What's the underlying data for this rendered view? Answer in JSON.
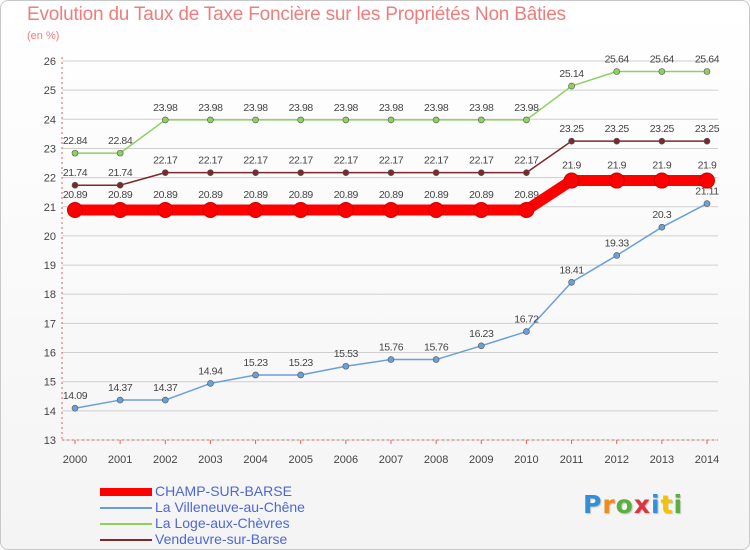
{
  "chart_data": {
    "type": "line",
    "title": "Evolution du Taux de Taxe Foncière sur les Propriétés Non Bâties",
    "subtitle": "(en %)",
    "xlabel": "",
    "ylabel": "(en %)",
    "ylim": [
      13,
      26
    ],
    "yticks": [
      13,
      14,
      15,
      16,
      17,
      18,
      19,
      20,
      21,
      22,
      23,
      24,
      25,
      26
    ],
    "grid": "horizontal",
    "categories": [
      "2000",
      "2001",
      "2002",
      "2003",
      "2004",
      "2005",
      "2006",
      "2007",
      "2008",
      "2009",
      "2010",
      "2011",
      "2012",
      "2013",
      "2014"
    ],
    "series": [
      {
        "name": "CHAMP-SUR-BARSE",
        "color": "#ff0000",
        "values": [
          20.89,
          20.89,
          20.89,
          20.89,
          20.89,
          20.89,
          20.89,
          20.89,
          20.89,
          20.89,
          20.89,
          21.9,
          21.9,
          21.9,
          21.9
        ],
        "labels": [
          "20.89",
          "20.89",
          "20.89",
          "20.89",
          "20.89",
          "20.89",
          "20.89",
          "20.89",
          "20.89",
          "20.89",
          "20.89",
          "21.9",
          "21.9",
          "21.9",
          "21.9"
        ]
      },
      {
        "name": "La Villeneuve-au-Chêne",
        "color": "#6a9fd8",
        "values": [
          14.09,
          14.37,
          14.37,
          14.94,
          15.23,
          15.23,
          15.53,
          15.76,
          15.76,
          16.23,
          16.72,
          18.41,
          19.33,
          20.3,
          21.11
        ],
        "labels": [
          "14.09",
          "14.37",
          "14.37",
          "14.94",
          "15.23",
          "15.23",
          "15.53",
          "15.76",
          "15.76",
          "16.23",
          "16.72",
          "18.41",
          "19.33",
          "20.3",
          "21.11"
        ]
      },
      {
        "name": "La Loge-aux-Chèvres",
        "color": "#8ed160",
        "values": [
          22.84,
          22.84,
          23.98,
          23.98,
          23.98,
          23.98,
          23.98,
          23.98,
          23.98,
          23.98,
          23.98,
          25.14,
          25.64,
          25.64,
          25.64
        ],
        "labels": [
          "22.84",
          "22.84",
          "23.98",
          "23.98",
          "23.98",
          "23.98",
          "23.98",
          "23.98",
          "23.98",
          "23.98",
          "23.98",
          "25.14",
          "25.64",
          "25.64",
          "25.64"
        ]
      },
      {
        "name": "Vendeuvre-sur-Barse",
        "color": "#7a2a2a",
        "values": [
          21.74,
          21.74,
          22.17,
          22.17,
          22.17,
          22.17,
          22.17,
          22.17,
          22.17,
          22.17,
          22.17,
          23.25,
          23.25,
          23.25,
          23.25
        ],
        "labels": [
          "21.74",
          "21.74",
          "22.17",
          "22.17",
          "22.17",
          "22.17",
          "22.17",
          "22.17",
          "22.17",
          "22.17",
          "22.17",
          "23.25",
          "23.25",
          "23.25",
          "23.25"
        ]
      }
    ],
    "legend": "bottom-left"
  },
  "branding": {
    "logo_text": "Proxiti",
    "logo_letters": [
      "P",
      "r",
      "o",
      "x",
      "i",
      "t",
      "i"
    ]
  }
}
